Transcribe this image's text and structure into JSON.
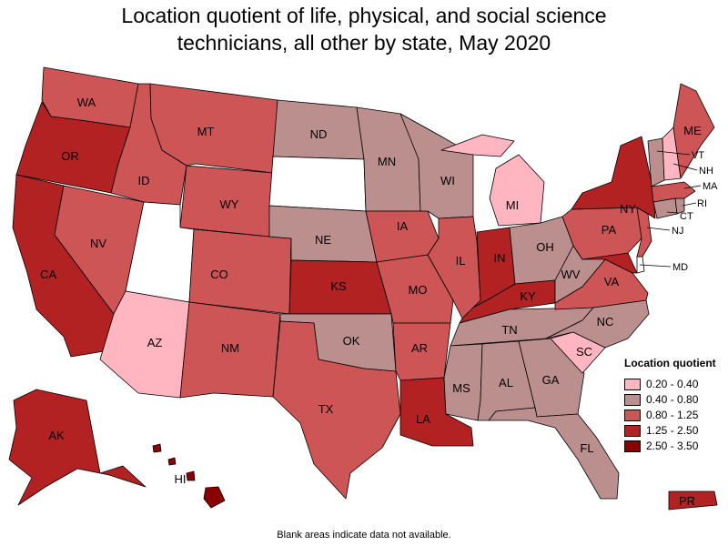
{
  "title_line1": "Location quotient of life, physical, and social science",
  "title_line2": "technicians, all other by state, May 2020",
  "legend": {
    "title": "Location quotient",
    "bins": [
      {
        "label": "0.20 - 0.40",
        "color": "#ffb6c1"
      },
      {
        "label": "0.40 - 0.80",
        "color": "#bc8f8f"
      },
      {
        "label": "0.80 - 1.25",
        "color": "#cd5555"
      },
      {
        "label": "1.25 - 2.50",
        "color": "#b22222"
      },
      {
        "label": "2.50 - 3.50",
        "color": "#8b0000"
      }
    ]
  },
  "footnote": "Blank areas indicate data not available.",
  "states": {
    "WA": {
      "bin": 2
    },
    "OR": {
      "bin": 3
    },
    "CA": {
      "bin": 3
    },
    "NV": {
      "bin": 2
    },
    "ID": {
      "bin": 2
    },
    "MT": {
      "bin": 2
    },
    "WY": {
      "bin": 2
    },
    "UT": {
      "bin": null
    },
    "AZ": {
      "bin": 0
    },
    "CO": {
      "bin": 2
    },
    "NM": {
      "bin": 2
    },
    "ND": {
      "bin": 1
    },
    "SD": {
      "bin": null
    },
    "NE": {
      "bin": 1
    },
    "KS": {
      "bin": 3
    },
    "OK": {
      "bin": 1
    },
    "TX": {
      "bin": 2
    },
    "MN": {
      "bin": 1
    },
    "IA": {
      "bin": 2
    },
    "MO": {
      "bin": 2
    },
    "AR": {
      "bin": 2
    },
    "LA": {
      "bin": 3
    },
    "WI": {
      "bin": 1
    },
    "IL": {
      "bin": 2
    },
    "MI": {
      "bin": 0
    },
    "IN": {
      "bin": 3
    },
    "OH": {
      "bin": 1
    },
    "KY": {
      "bin": 3
    },
    "TN": {
      "bin": 1
    },
    "MS": {
      "bin": 1
    },
    "AL": {
      "bin": 1
    },
    "GA": {
      "bin": 1
    },
    "FL": {
      "bin": 1
    },
    "SC": {
      "bin": 0
    },
    "NC": {
      "bin": 1
    },
    "VA": {
      "bin": 2
    },
    "WV": {
      "bin": 1
    },
    "PA": {
      "bin": 2
    },
    "NY": {
      "bin": 3
    },
    "ME": {
      "bin": 2
    },
    "VT": {
      "bin": 1
    },
    "NH": {
      "bin": 0
    },
    "MA": {
      "bin": 2
    },
    "RI": {
      "bin": 1
    },
    "CT": {
      "bin": 1
    },
    "NJ": {
      "bin": 2
    },
    "DE": {
      "bin": null
    },
    "MD": {
      "bin": 3
    },
    "AK": {
      "bin": 3
    },
    "HI": {
      "bin": 4
    },
    "PR": {
      "bin": 3
    }
  }
}
